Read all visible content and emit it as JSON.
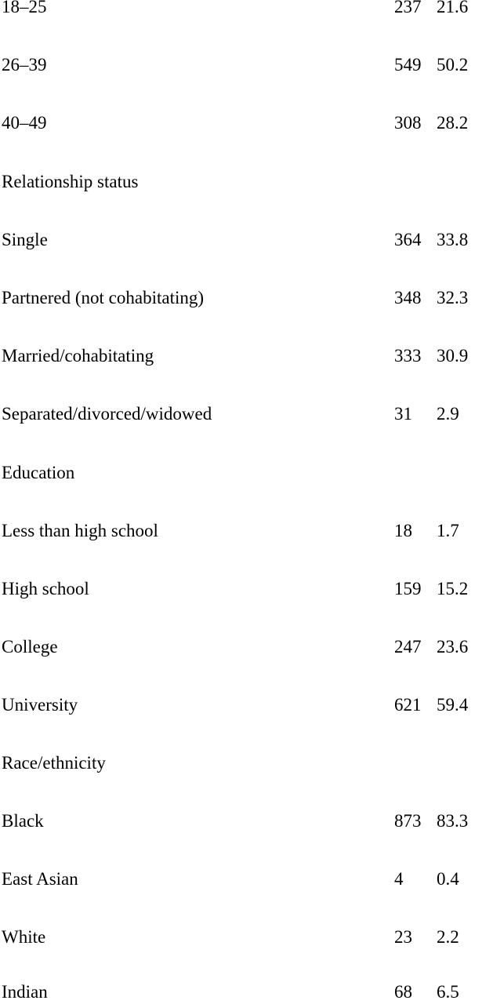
{
  "rows": [
    {
      "label": "18–25",
      "n": "237",
      "pct": "21.6"
    },
    {
      "label": "26–39",
      "n": "549",
      "pct": "50.2"
    },
    {
      "label": "40–49",
      "n": "308",
      "pct": "28.2"
    },
    {
      "label": "Relationship status",
      "n": "",
      "pct": ""
    },
    {
      "label": "Single",
      "n": "364",
      "pct": "33.8"
    },
    {
      "label": "Partnered (not cohabitating)",
      "n": "348",
      "pct": "32.3"
    },
    {
      "label": "Married/cohabitating",
      "n": "333",
      "pct": "30.9"
    },
    {
      "label": "Separated/divorced/widowed",
      "n": "31",
      "pct": "2.9"
    },
    {
      "label": "Education",
      "n": "",
      "pct": ""
    },
    {
      "label": "Less than high school",
      "n": "18",
      "pct": "1.7"
    },
    {
      "label": "High school",
      "n": "159",
      "pct": "15.2"
    },
    {
      "label": "College",
      "n": "247",
      "pct": "23.6"
    },
    {
      "label": "University",
      "n": "621",
      "pct": "59.4"
    },
    {
      "label": "Race/ethnicity",
      "n": "",
      "pct": ""
    },
    {
      "label": "Black",
      "n": "873",
      "pct": "83.3"
    },
    {
      "label": "East Asian",
      "n": "4",
      "pct": "0.4"
    },
    {
      "label": "White",
      "n": "23",
      "pct": "2.2"
    },
    {
      "label": "Indian",
      "n": "68",
      "pct": "6.5"
    }
  ]
}
